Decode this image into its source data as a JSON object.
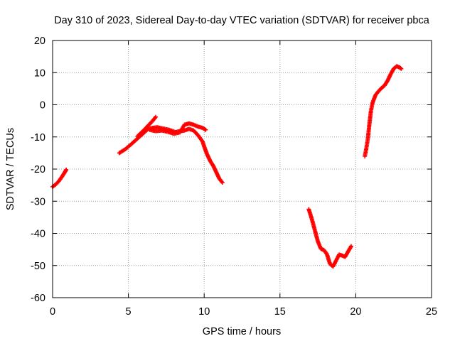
{
  "chart_data": {
    "type": "scatter",
    "title": "Day 310 of 2023, Sidereal Day-to-day VTEC variation (SDTVAR) for receiver pbca",
    "xlabel": "GPS time / hours",
    "ylabel": "SDTVAR / TECUs",
    "xlim": [
      0,
      25
    ],
    "ylim": [
      -60,
      20
    ],
    "x_ticks": [
      0,
      5,
      10,
      15,
      20,
      25
    ],
    "y_ticks": [
      -60,
      -50,
      -40,
      -30,
      -20,
      -10,
      0,
      10,
      20
    ],
    "x_tick_labels": [
      "0",
      "5",
      "10",
      "15",
      "20",
      "25"
    ],
    "y_tick_labels": [
      "-60",
      "-50",
      "-40",
      "-30",
      "-20",
      "-10",
      "0",
      "10",
      "20"
    ],
    "grid": true,
    "marker": "plus",
    "color": "#ff0000",
    "series": [
      {
        "name": "segment-1",
        "x": [
          0.0,
          0.2,
          0.4,
          0.6,
          0.8,
          0.9
        ],
        "y": [
          -25.5,
          -24.8,
          -23.8,
          -22.5,
          -21.0,
          -20.2
        ]
      },
      {
        "name": "segment-2",
        "x": [
          4.4,
          4.8,
          5.2,
          5.6,
          6.0,
          6.3,
          6.6,
          6.9,
          7.3,
          7.7,
          8.1,
          8.4,
          8.7,
          9.0,
          9.3,
          9.6,
          9.9,
          10.0,
          10.2,
          10.4,
          10.6,
          10.8,
          11.0,
          11.2
        ],
        "y": [
          -15.0,
          -13.8,
          -12.2,
          -10.5,
          -8.8,
          -7.5,
          -7.2,
          -7.0,
          -7.4,
          -7.8,
          -8.5,
          -8.2,
          -8.0,
          -7.5,
          -8.0,
          -9.5,
          -11.5,
          -13.0,
          -15.5,
          -17.5,
          -19.0,
          -21.0,
          -23.0,
          -24.2
        ]
      },
      {
        "name": "segment-2-upper",
        "x": [
          5.6,
          6.0,
          6.3,
          6.6,
          6.8
        ],
        "y": [
          -9.8,
          -8.0,
          -6.5,
          -5.0,
          -3.8
        ]
      },
      {
        "name": "segment-2-band",
        "x": [
          6.4,
          6.8,
          7.2,
          7.6,
          8.0,
          8.4,
          8.7,
          9.0,
          9.3,
          9.6,
          9.9,
          10.1
        ],
        "y": [
          -7.8,
          -8.2,
          -8.0,
          -8.4,
          -9.0,
          -8.6,
          -6.2,
          -5.8,
          -6.2,
          -6.8,
          -7.2,
          -7.8
        ]
      },
      {
        "name": "segment-3",
        "x": [
          16.9,
          17.1,
          17.3,
          17.5,
          17.7,
          17.9,
          18.1,
          18.3,
          18.5,
          18.7,
          18.9,
          19.1,
          19.3,
          19.5,
          19.7
        ],
        "y": [
          -32.5,
          -35.5,
          -39.0,
          -42.5,
          -44.8,
          -45.2,
          -46.5,
          -49.5,
          -50.3,
          -48.5,
          -46.6,
          -46.9,
          -47.3,
          -45.6,
          -44.0
        ]
      },
      {
        "name": "segment-4",
        "x": [
          20.6,
          20.7,
          20.8,
          20.9,
          21.0,
          21.1,
          21.3,
          21.5,
          21.7,
          21.9,
          22.1,
          22.3,
          22.5,
          22.7,
          22.9,
          23.0
        ],
        "y": [
          -16.0,
          -13.5,
          -10.5,
          -6.0,
          -2.0,
          0.5,
          3.0,
          4.2,
          5.2,
          6.0,
          7.5,
          9.5,
          11.2,
          12.0,
          11.6,
          11.2
        ]
      }
    ]
  }
}
